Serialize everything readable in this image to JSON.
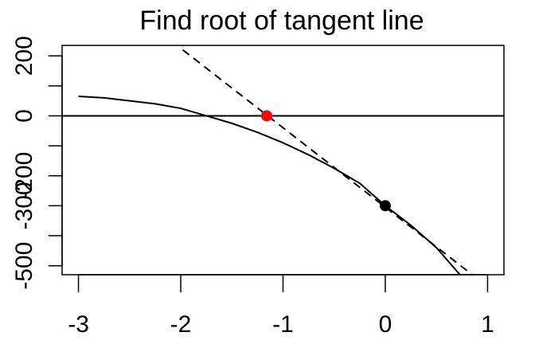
{
  "chart_data": {
    "type": "line",
    "title": "Find root of tangent line",
    "xlabel": "",
    "ylabel": "",
    "xlim": [
      -3.16,
      1.16
    ],
    "ylim": [
      -530,
      235
    ],
    "x_ticks": [
      -3,
      -2,
      -1,
      0,
      1
    ],
    "x_tick_labels": [
      "-3",
      "-2",
      "-1",
      "0",
      "1"
    ],
    "y_ticks": [
      -500,
      -400,
      -300,
      -200,
      -100,
      0,
      100,
      200
    ],
    "y_tick_labels": [
      "-500",
      "",
      "-300",
      "-200",
      "",
      "0",
      "",
      "200"
    ],
    "grid": false,
    "legend": "none",
    "series": [
      {
        "style": "solid",
        "color": "#000000",
        "x": [
          -3.0,
          -2.75,
          -2.5,
          -2.25,
          -2.0,
          -1.75,
          -1.5,
          -1.25,
          -1.0,
          -0.75,
          -0.5,
          -0.25,
          0.0,
          0.25,
          0.5,
          0.73
        ],
        "y": [
          65,
          60,
          50,
          40,
          25,
          0,
          -25,
          -55,
          -90,
          -130,
          -175,
          -225,
          -300,
          -365,
          -440,
          -530
        ]
      },
      {
        "style": "dashed",
        "color": "#000000",
        "x": [
          -1.98,
          0.85
        ],
        "y": [
          220,
          -530
        ]
      },
      {
        "style": "solid",
        "color": "#000000",
        "role": "zero-line",
        "x": [
          -3.16,
          1.16
        ],
        "y": [
          0,
          0
        ]
      }
    ],
    "points": [
      {
        "x": 0.0,
        "y": -300,
        "color": "#000000"
      },
      {
        "x": -1.16,
        "y": 0,
        "color": "#ff0000"
      }
    ]
  }
}
